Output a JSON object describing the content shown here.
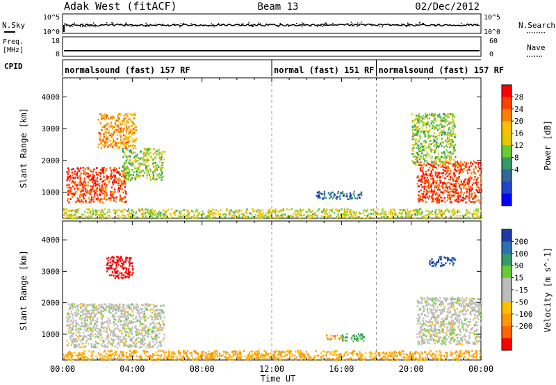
{
  "header": {
    "site": "Adak West (fitACF)",
    "beam": "Beam 13",
    "date": "02/Dec/2012"
  },
  "nsky_panel": {
    "left_label": "N.Sky",
    "right_label": "N.Search",
    "left_ticks": [
      "10^5",
      "10^0"
    ],
    "right_ticks": [
      "10^5",
      "10^0"
    ],
    "line_style": "solid (N.Sky), dotted (N.Search)"
  },
  "freq_panel": {
    "left_label_1": "Freq.",
    "left_label_2": "[MHz]",
    "right_label": "Nave",
    "left_ticks": [
      "18",
      "8"
    ],
    "right_ticks": [
      "60",
      "0"
    ]
  },
  "cpid": {
    "label": "CPID",
    "segments": [
      {
        "text": "normalsound (fast) 157 RF",
        "start_hour": 0,
        "end_hour": 12
      },
      {
        "text": "normal (fast) 151 RF",
        "start_hour": 12,
        "end_hour": 18
      },
      {
        "text": "normalsound (fast) 157 RF",
        "start_hour": 18,
        "end_hour": 24
      }
    ]
  },
  "power_colorbar": {
    "label": "Power [dB]",
    "ticks": [
      "28",
      "24",
      "20",
      "16",
      "12",
      "8",
      "4"
    ],
    "colors": [
      "#ff0000",
      "#ff4000",
      "#ff8000",
      "#ffbf00",
      "#e6c800",
      "#66cc33",
      "#339966",
      "#336699",
      "#2244cc",
      "#0000ff"
    ]
  },
  "velocity_colorbar": {
    "label": "Velocity [m s^-1]",
    "ticks": [
      "200",
      "100",
      "50",
      "15",
      "-15",
      "-50",
      "-100",
      "-200"
    ],
    "colors": [
      "#1f3aa6",
      "#2e6fb0",
      "#339966",
      "#66cc33",
      "#bbbbbb",
      "#bbbbbb",
      "#ffc000",
      "#ff9900",
      "#ff6600",
      "#ff0000"
    ]
  },
  "chart_data": [
    {
      "type": "heatmap",
      "name": "power",
      "ylabel": "Slant Range [km]",
      "yticks": [
        1000,
        2000,
        3000,
        4000
      ],
      "ylim": [
        180,
        4600
      ],
      "xlim_hours": [
        0,
        24
      ],
      "dashed_vlines_hours": [
        12,
        18
      ],
      "blobs": [
        {
          "x0": 0.2,
          "x1": 3.6,
          "y0": 700,
          "y1": 1800,
          "value_db": 27
        },
        {
          "x0": 3.4,
          "x1": 5.8,
          "y0": 1400,
          "y1": 2400,
          "value_db": 14
        },
        {
          "x0": 2.0,
          "x1": 4.2,
          "y0": 2400,
          "y1": 3500,
          "value_db": 22
        },
        {
          "x0": 14.5,
          "x1": 17.2,
          "y0": 800,
          "y1": 1050,
          "value_db": 6
        },
        {
          "x0": 20.3,
          "x1": 24.0,
          "y0": 700,
          "y1": 2000,
          "value_db": 27
        },
        {
          "x0": 20.0,
          "x1": 22.5,
          "y0": 1900,
          "y1": 3500,
          "value_db": 14
        },
        {
          "x0": 0.0,
          "x1": 24.0,
          "y0": 200,
          "y1": 500,
          "value_db": 16
        }
      ]
    },
    {
      "type": "heatmap",
      "name": "velocity",
      "ylabel": "Slant Range [km]",
      "xlabel": "Time UT",
      "yticks": [
        1000,
        2000,
        3000,
        4000
      ],
      "ylim": [
        180,
        4600
      ],
      "xlim_hours": [
        0,
        24
      ],
      "xticks": [
        "00:00",
        "04:00",
        "08:00",
        "12:00",
        "16:00",
        "20:00",
        "00:00"
      ],
      "dashed_vlines_hours": [
        12,
        18
      ],
      "blobs": [
        {
          "x0": 0.2,
          "x1": 5.8,
          "y0": 600,
          "y1": 2000,
          "value_ms": 0
        },
        {
          "x0": 2.5,
          "x1": 4.0,
          "y0": 2800,
          "y1": 3500,
          "value_ms": -200
        },
        {
          "x0": 15.0,
          "x1": 16.0,
          "y0": 850,
          "y1": 1000,
          "value_ms": -60
        },
        {
          "x0": 16.0,
          "x1": 17.3,
          "y0": 800,
          "y1": 1050,
          "value_ms": 40
        },
        {
          "x0": 20.3,
          "x1": 24.0,
          "y0": 700,
          "y1": 2200,
          "value_ms": 0
        },
        {
          "x0": 21.0,
          "x1": 22.5,
          "y0": 3200,
          "y1": 3500,
          "value_ms": 150
        },
        {
          "x0": 0.0,
          "x1": 24.0,
          "y0": 200,
          "y1": 500,
          "value_ms": -40
        }
      ]
    }
  ]
}
